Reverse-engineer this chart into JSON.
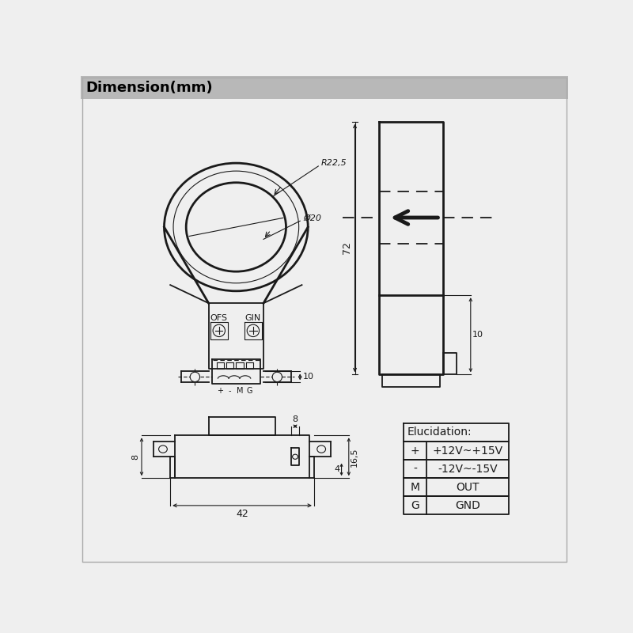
{
  "title": "Dimension(mm)",
  "title_bg": "#b8b8b8",
  "bg_color": "#efefef",
  "draw_color": "#1a1a1a",
  "white": "#ffffff",
  "table_title": "Elucidation:",
  "table_rows": [
    [
      "+",
      "+12V~+15V"
    ],
    [
      "-",
      "-12V~-15V"
    ],
    [
      "M",
      "OUT"
    ],
    [
      "G",
      "GND"
    ]
  ],
  "dim_R22_5": "R22,5",
  "dim_d20": "Ø20",
  "dim_72": "72",
  "dim_10": "10",
  "dim_42": "42",
  "dim_8": "8",
  "dim_16_5": "16,5",
  "dim_4": "4",
  "dim_8b": "8"
}
